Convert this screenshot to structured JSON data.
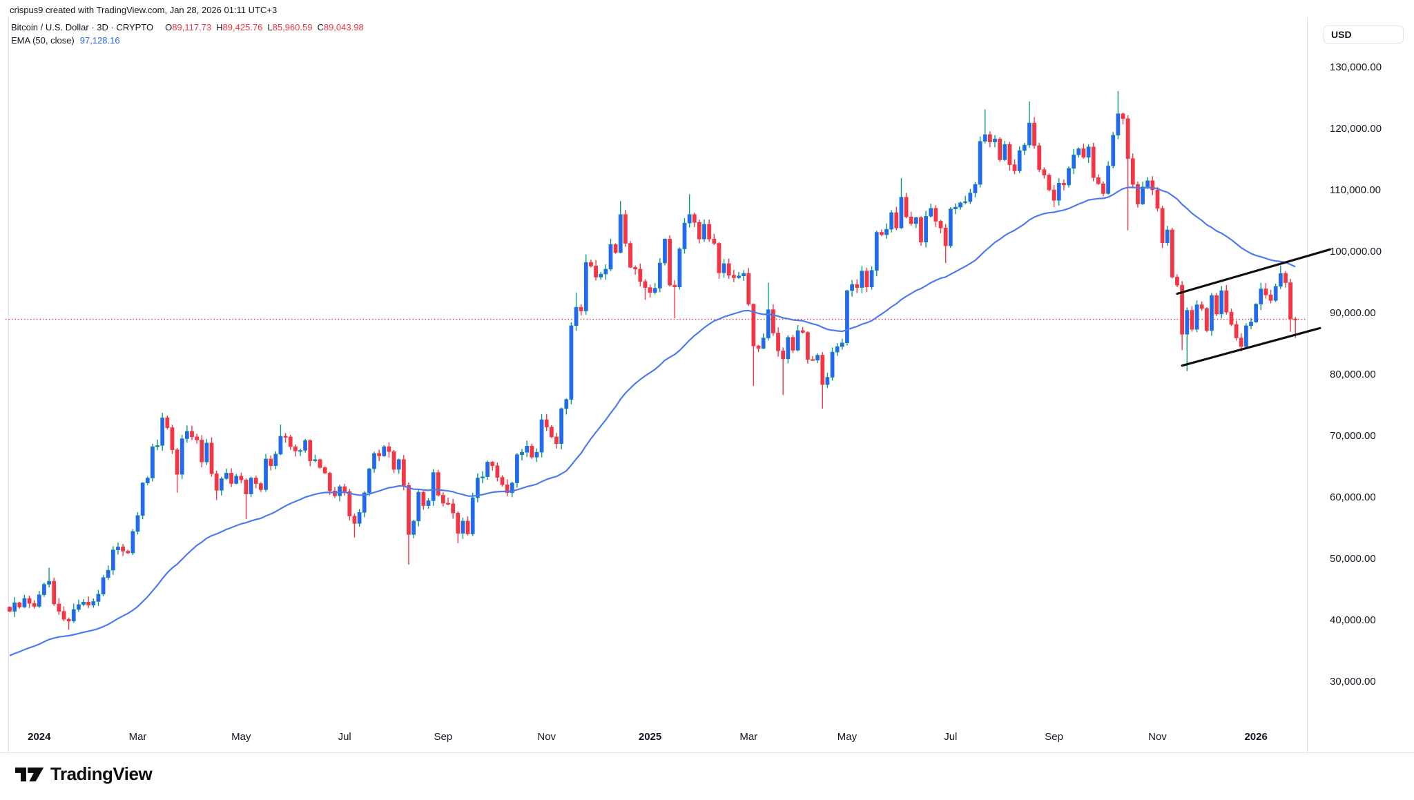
{
  "attribution": "crispus9 created with TradingView.com, Jan 28, 2026 01:11 UTC+3",
  "header": {
    "symbol_line": "Bitcoin / U.S. Dollar · 3D · CRYPTO",
    "ohlc": [
      {
        "label": "O",
        "value": "89,117.73"
      },
      {
        "label": "H",
        "value": "89,425.76"
      },
      {
        "label": "L",
        "value": "85,960.59"
      },
      {
        "label": "C",
        "value": "89,043.98"
      }
    ],
    "indicator": {
      "name": "EMA (50, close)",
      "value": "97,128.16"
    }
  },
  "price_axis": {
    "currency_button": "USD",
    "ticks": [
      {
        "value": 130000,
        "label": "130,000.00"
      },
      {
        "value": 120000,
        "label": "120,000.00"
      },
      {
        "value": 110000,
        "label": "110,000.00"
      },
      {
        "value": 100000,
        "label": "100,000.00"
      },
      {
        "value": 90000,
        "label": "90,000.00"
      },
      {
        "value": 80000,
        "label": "80,000.00"
      },
      {
        "value": 70000,
        "label": "70,000.00"
      },
      {
        "value": 60000,
        "label": "60,000.00"
      },
      {
        "value": 50000,
        "label": "50,000.00"
      },
      {
        "value": 40000,
        "label": "40,000.00"
      },
      {
        "value": 30000,
        "label": "30,000.00"
      }
    ]
  },
  "time_axis": {
    "labels": [
      {
        "text": "2024",
        "bar": 6,
        "bold": true
      },
      {
        "text": "Mar",
        "bar": 26,
        "bold": false
      },
      {
        "text": "May",
        "bar": 47,
        "bold": false
      },
      {
        "text": "Jul",
        "bar": 68,
        "bold": false
      },
      {
        "text": "Sep",
        "bar": 88,
        "bold": false
      },
      {
        "text": "Nov",
        "bar": 109,
        "bold": false
      },
      {
        "text": "2025",
        "bar": 130,
        "bold": true
      },
      {
        "text": "Mar",
        "bar": 150,
        "bold": false
      },
      {
        "text": "May",
        "bar": 170,
        "bold": false
      },
      {
        "text": "Jul",
        "bar": 191,
        "bold": false
      },
      {
        "text": "Sep",
        "bar": 212,
        "bold": false
      },
      {
        "text": "Nov",
        "bar": 233,
        "bold": false
      },
      {
        "text": "2026",
        "bar": 253,
        "bold": true
      }
    ]
  },
  "logo": {
    "text": "TradingView"
  },
  "colors": {
    "up_body": "#2962ff",
    "up_wick": "#089981",
    "down": "#f23645",
    "ema": "#4c7af0",
    "last_price_line": "#f23645",
    "trendline": "#101010",
    "text": "#131722",
    "border": "#e0e3eb"
  },
  "chart_data": {
    "type": "candlestick",
    "title": "Bitcoin / U.S. Dollar",
    "symbol": "BTCUSD",
    "interval": "3D",
    "exchange": "CRYPTO",
    "units": "USD (values stored in thousands)",
    "visible_price_range_k": [
      23.6,
      138.2
    ],
    "y_axis": {
      "tick_step": 10000,
      "min_label": 30000,
      "max_label": 130000,
      "grid": false
    },
    "legend_position": "top-left",
    "last_close": 89043.98,
    "last_ohlc": {
      "open": 89117.73,
      "high": 89425.76,
      "low": 85960.59,
      "close": 89043.98
    },
    "ema_indicator": {
      "period": 50,
      "source": "close",
      "last_value": 97128.16,
      "seed_k": 34.0
    },
    "last_price_line_k": 89.04,
    "first_open_k": 42.2,
    "closes_k": [
      41.5,
      42.9,
      42.2,
      43.6,
      42.8,
      42.3,
      44.2,
      45.9,
      46.4,
      42.7,
      41.5,
      40.2,
      39.9,
      41.8,
      42.6,
      43.0,
      42.5,
      43.1,
      44.3,
      47.0,
      48.2,
      51.5,
      52.0,
      51.3,
      51.0,
      54.5,
      57.1,
      62.4,
      63.2,
      68.3,
      68.5,
      73.0,
      71.4,
      67.8,
      63.8,
      69.6,
      70.8,
      69.9,
      69.4,
      65.8,
      68.9,
      63.9,
      61.2,
      63.1,
      64.0,
      62.3,
      63.5,
      62.9,
      60.6,
      63.2,
      62.3,
      61.3,
      66.3,
      65.2,
      67.1,
      70.0,
      69.9,
      68.3,
      67.6,
      67.7,
      69.3,
      66.0,
      66.2,
      64.9,
      64.0,
      61.1,
      60.3,
      61.8,
      61.0,
      57.0,
      55.8,
      57.6,
      60.8,
      64.7,
      67.2,
      66.8,
      68.3,
      67.5,
      64.6,
      66.2,
      62.0,
      54.0,
      56.2,
      60.9,
      58.7,
      59.5,
      64.1,
      60.4,
      59.1,
      59.0,
      57.5,
      54.2,
      56.2,
      54.1,
      60.0,
      63.2,
      63.4,
      65.8,
      65.2,
      63.3,
      62.1,
      60.8,
      62.4,
      67.0,
      67.4,
      68.4,
      66.6,
      67.4,
      72.7,
      71.5,
      69.9,
      68.8,
      74.5,
      76.0,
      88.0,
      91.0,
      90.4,
      98.3,
      97.7,
      95.9,
      96.4,
      97.2,
      101.2,
      99.9,
      106.1,
      101.4,
      97.5,
      97.2,
      95.2,
      94.2,
      93.4,
      94.1,
      98.2,
      102.1,
      94.6,
      94.3,
      100.5,
      104.7,
      106.1,
      104.8,
      102.1,
      104.5,
      102.1,
      101.4,
      96.6,
      98.1,
      96.2,
      95.8,
      96.1,
      96.5,
      91.5,
      84.7,
      84.3,
      86.0,
      90.6,
      86.8,
      83.9,
      82.6,
      86.1,
      84.0,
      87.2,
      86.9,
      82.5,
      82.4,
      83.2,
      78.4,
      79.6,
      83.7,
      84.6,
      85.2,
      93.7,
      94.7,
      94.2,
      96.9,
      94.3,
      97.0,
      103.2,
      102.8,
      103.7,
      106.4,
      103.9,
      108.9,
      105.7,
      104.6,
      105.6,
      101.6,
      105.8,
      107.1,
      105.0,
      103.9,
      101.0,
      107.0,
      107.3,
      108.0,
      108.2,
      109.6,
      111.0,
      118.0,
      119.1,
      117.9,
      118.4,
      115.0,
      117.5,
      114.2,
      113.2,
      116.5,
      117.4,
      121.0,
      117.3,
      113.4,
      112.5,
      110.1,
      108.4,
      111.2,
      110.9,
      113.6,
      115.8,
      116.8,
      115.4,
      117.1,
      112.1,
      111.1,
      109.5,
      114.0,
      119.0,
      122.5,
      121.7,
      115.2,
      111.0,
      107.8,
      110.6,
      111.6,
      110.1,
      107.1,
      101.5,
      103.6,
      95.9,
      94.6,
      86.6,
      90.5,
      87.4,
      91.4,
      90.8,
      87.2,
      92.9,
      89.9,
      93.7,
      90.2,
      88.2,
      86.0,
      84.6,
      88.0,
      88.6,
      91.5,
      94.0,
      93.0,
      92.1,
      94.4,
      96.5,
      95.0,
      89.1,
      89.0
    ],
    "wick_overrides": [
      [
        8,
        48.6,
        null
      ],
      [
        12,
        null,
        38.5
      ],
      [
        31,
        73.8,
        null
      ],
      [
        34,
        null,
        60.8
      ],
      [
        42,
        null,
        59.6
      ],
      [
        48,
        null,
        56.5
      ],
      [
        55,
        71.9,
        null
      ],
      [
        70,
        null,
        53.5
      ],
      [
        81,
        null,
        49.1
      ],
      [
        91,
        null,
        52.6
      ],
      [
        108,
        73.6,
        null
      ],
      [
        115,
        93.4,
        null
      ],
      [
        117,
        99.6,
        null
      ],
      [
        124,
        108.3,
        null
      ],
      [
        129,
        null,
        92.2
      ],
      [
        135,
        null,
        89.2
      ],
      [
        138,
        109.4,
        null
      ],
      [
        151,
        null,
        78.2
      ],
      [
        154,
        95.0,
        null
      ],
      [
        157,
        null,
        76.7
      ],
      [
        165,
        null,
        74.5
      ],
      [
        181,
        112.0,
        null
      ],
      [
        190,
        null,
        98.2
      ],
      [
        198,
        123.2,
        null
      ],
      [
        207,
        124.5,
        null
      ],
      [
        212,
        null,
        107.3
      ],
      [
        225,
        126.2,
        null
      ],
      [
        227,
        null,
        103.5
      ],
      [
        238,
        null,
        84.0
      ],
      [
        239,
        null,
        80.6
      ],
      [
        250,
        null,
        83.8
      ],
      [
        258,
        97.8,
        null
      ],
      [
        260,
        null,
        87.0
      ],
      [
        261,
        89.4,
        86.0
      ]
    ],
    "drawings": {
      "type": "parallel-channel",
      "upper_line": {
        "b1": 237,
        "p1_k": 93.2,
        "b2": 268,
        "p2_k": 100.4
      },
      "lower_line": {
        "b1": 238,
        "p1_k": 81.5,
        "b2": 266,
        "p2_k": 87.6
      }
    }
  }
}
